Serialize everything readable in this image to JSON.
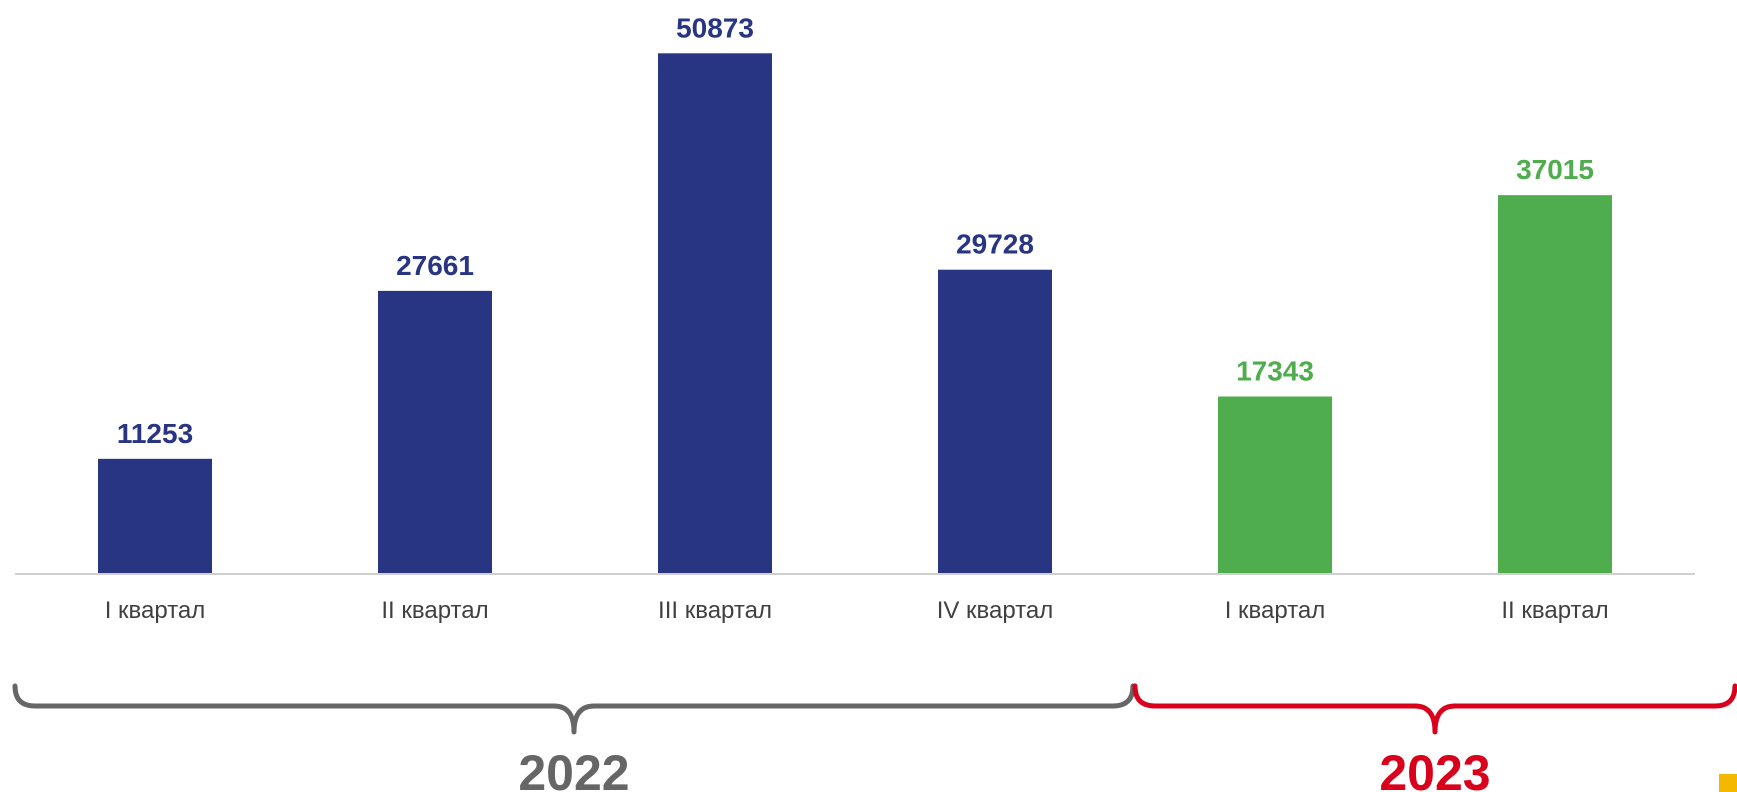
{
  "chart_data": {
    "type": "bar",
    "categories": [
      "I квартал",
      "II квартал",
      "III квартал",
      "IV квартал",
      "I квартал",
      "II квартал"
    ],
    "values": [
      11253,
      27661,
      50873,
      29728,
      17343,
      37015
    ],
    "groups": [
      {
        "label": "2022",
        "categories": [
          0,
          1,
          2,
          3
        ],
        "color": "#666666",
        "bar_color": "#283583"
      },
      {
        "label": "2023",
        "categories": [
          4,
          5
        ],
        "color": "#d9001b",
        "bar_color": "#4fad4d"
      }
    ],
    "title": "",
    "xlabel": "",
    "ylabel": "",
    "ylim": [
      0,
      51000
    ],
    "grid": false,
    "legend": "none"
  },
  "colors": {
    "axis": "#d0d0d0",
    "corner_accent": "#f5b800"
  }
}
